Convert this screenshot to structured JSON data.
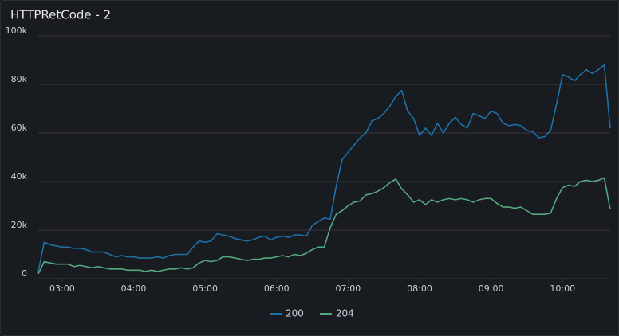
{
  "chart_data": {
    "type": "line",
    "title": "HTTPRetCode - 2",
    "x": [
      "02:40",
      "02:45",
      "02:50",
      "02:55",
      "03:00",
      "03:05",
      "03:10",
      "03:15",
      "03:20",
      "03:25",
      "03:30",
      "03:35",
      "03:40",
      "03:45",
      "03:50",
      "03:55",
      "04:00",
      "04:05",
      "04:10",
      "04:15",
      "04:20",
      "04:25",
      "04:30",
      "04:35",
      "04:40",
      "04:45",
      "04:50",
      "04:55",
      "05:00",
      "05:05",
      "05:10",
      "05:15",
      "05:20",
      "05:25",
      "05:30",
      "05:35",
      "05:40",
      "05:45",
      "05:50",
      "05:55",
      "06:00",
      "06:05",
      "06:10",
      "06:15",
      "06:20",
      "06:25",
      "06:30",
      "06:35",
      "06:40",
      "06:45",
      "06:50",
      "06:55",
      "07:00",
      "07:05",
      "07:10",
      "07:15",
      "07:20",
      "07:25",
      "07:30",
      "07:35",
      "07:40",
      "07:45",
      "07:50",
      "07:55",
      "08:00",
      "08:05",
      "08:10",
      "08:15",
      "08:20",
      "08:25",
      "08:30",
      "08:35",
      "08:40",
      "08:45",
      "08:50",
      "08:55",
      "09:00",
      "09:05",
      "09:10",
      "09:15",
      "09:20",
      "09:25",
      "09:30",
      "09:35",
      "09:40",
      "09:45",
      "09:50",
      "09:55",
      "10:00",
      "10:05",
      "10:10",
      "10:15",
      "10:20",
      "10:25",
      "10:30",
      "10:35",
      "10:40"
    ],
    "series": [
      {
        "name": "200",
        "color": "#1f6fa6",
        "values": [
          3000,
          15000,
          14000,
          13500,
          13000,
          13000,
          12500,
          12500,
          12000,
          11000,
          11000,
          11000,
          10000,
          9000,
          9500,
          9000,
          9000,
          8500,
          8500,
          8500,
          9000,
          8500,
          9500,
          10000,
          10000,
          10000,
          13000,
          15500,
          15000,
          15500,
          18500,
          18000,
          17500,
          16500,
          16000,
          15500,
          16000,
          17000,
          17500,
          16000,
          17000,
          17500,
          17000,
          18000,
          18000,
          17500,
          22000,
          23500,
          25000,
          24500,
          38000,
          49000,
          52000,
          55000,
          58000,
          60000,
          65000,
          66000,
          68000,
          71000,
          75000,
          77500,
          69000,
          66000,
          59000,
          62000,
          59000,
          64000,
          60000,
          64000,
          66500,
          63500,
          62000,
          68000,
          67000,
          66000,
          69000,
          68000,
          64000,
          63000,
          63500,
          63000,
          61000,
          60500,
          58000,
          58500,
          61000,
          72000,
          84000,
          83000,
          81500,
          84000,
          86000,
          84500,
          86000,
          88000,
          62000
        ]
      },
      {
        "name": "204",
        "color": "#56a77f",
        "values": [
          2000,
          7000,
          6500,
          6000,
          6000,
          6000,
          5000,
          5500,
          5000,
          4500,
          5000,
          4500,
          4000,
          4000,
          4000,
          3500,
          3500,
          3500,
          3000,
          3500,
          3000,
          3500,
          4000,
          4000,
          4500,
          4000,
          4500,
          6500,
          7500,
          7000,
          7500,
          9000,
          9000,
          8500,
          8000,
          7500,
          8000,
          8000,
          8500,
          8500,
          9000,
          9500,
          9000,
          10000,
          9500,
          10500,
          12000,
          13000,
          13000,
          21000,
          26500,
          28000,
          30000,
          31500,
          32000,
          34500,
          35000,
          36000,
          37500,
          39500,
          41000,
          37000,
          34500,
          31500,
          32500,
          30500,
          32500,
          31500,
          32500,
          33000,
          32500,
          33000,
          32500,
          31500,
          32500,
          33000,
          33000,
          31000,
          29500,
          29500,
          29000,
          29500,
          28000,
          26500,
          26500,
          26500,
          27000,
          33000,
          37500,
          38500,
          38000,
          40000,
          40500,
          40000,
          40500,
          41500,
          28500
        ]
      }
    ],
    "xlim": [
      "02:40",
      "10:40"
    ],
    "xticks": [
      "03:00",
      "04:00",
      "05:00",
      "06:00",
      "07:00",
      "08:00",
      "09:00",
      "10:00"
    ],
    "ylim": [
      0,
      100000
    ],
    "yticks": [
      0,
      {
        "value": 20000,
        "label": "20k"
      },
      {
        "value": 40000,
        "label": "40k"
      },
      {
        "value": 60000,
        "label": "60k"
      },
      {
        "value": 80000,
        "label": "80k"
      },
      {
        "value": 100000,
        "label": "100k"
      }
    ],
    "grid": true,
    "legend": "bottom"
  }
}
